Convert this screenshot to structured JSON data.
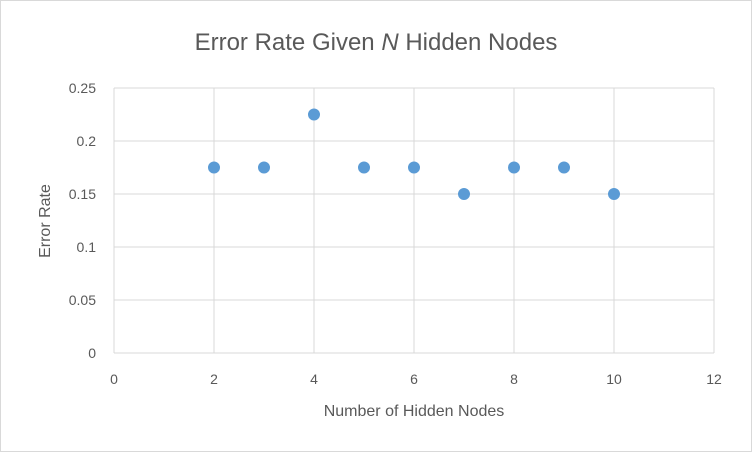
{
  "chart_data": {
    "type": "scatter",
    "title_parts": {
      "before": "Error Rate Given ",
      "italic": "N",
      "after": " Hidden Nodes"
    },
    "xlabel": "Number of Hidden Nodes",
    "ylabel": "Error Rate",
    "xlim": [
      0,
      12
    ],
    "ylim": [
      0,
      0.25
    ],
    "x_ticks": [
      0,
      2,
      4,
      6,
      8,
      10,
      12
    ],
    "x_tick_labels": [
      "0",
      "2",
      "4",
      "6",
      "8",
      "10",
      "12"
    ],
    "y_ticks": [
      0,
      0.05,
      0.1,
      0.15,
      0.2,
      0.25
    ],
    "y_tick_labels": [
      "0",
      "0.05",
      "0.1",
      "0.15",
      "0.2",
      "0.25"
    ],
    "grid": true,
    "marker_color": "#5b9bd5",
    "grid_color": "#d9d9d9",
    "series": [
      {
        "x": [
          2,
          3,
          4,
          5,
          6,
          7,
          8,
          9,
          10
        ],
        "y": [
          0.175,
          0.175,
          0.225,
          0.175,
          0.175,
          0.15,
          0.175,
          0.175,
          0.15
        ]
      }
    ]
  }
}
